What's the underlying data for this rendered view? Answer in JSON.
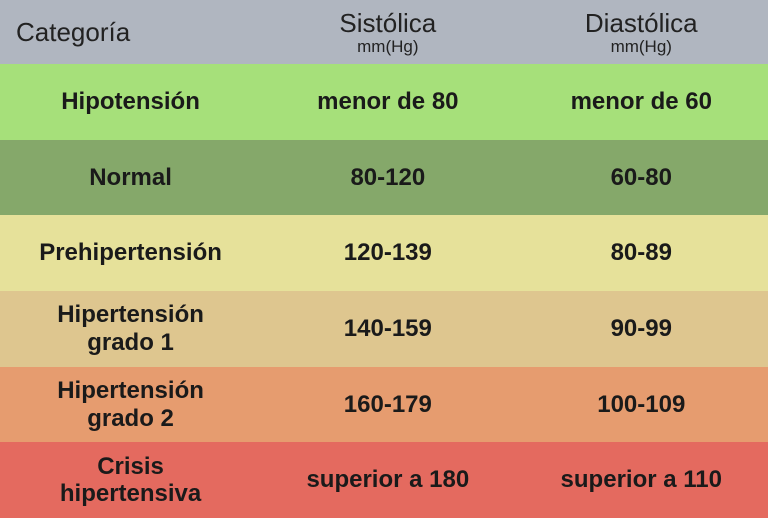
{
  "table": {
    "type": "table",
    "header": {
      "background_color": "#b0b6c0",
      "text_color": "#222222",
      "columns": [
        {
          "title": "Categoría",
          "unit": ""
        },
        {
          "title": "Sistólica",
          "unit": "mm(Hg)"
        },
        {
          "title": "Diastólica",
          "unit": "mm(Hg)"
        }
      ],
      "title_fontsize": 26,
      "unit_fontsize": 17
    },
    "rows": [
      {
        "category": [
          "Hipotensión"
        ],
        "systolic": "menor de 80",
        "diastolic": "menor de 60",
        "background_color": "#a6e07a"
      },
      {
        "category": [
          "Normal"
        ],
        "systolic": "80-120",
        "diastolic": "60-80",
        "background_color": "#85a86a"
      },
      {
        "category": [
          "Prehipertensión"
        ],
        "systolic": "120-139",
        "diastolic": "80-89",
        "background_color": "#e6e19a"
      },
      {
        "category": [
          "Hipertensión",
          "grado 1"
        ],
        "systolic": "140-159",
        "diastolic": "90-99",
        "background_color": "#dec68f"
      },
      {
        "category": [
          "Hipertensión",
          "grado 2"
        ],
        "systolic": "160-179",
        "diastolic": "100-109",
        "background_color": "#e69c6f"
      },
      {
        "category": [
          "Crisis",
          "hipertensiva"
        ],
        "systolic": "superior a 180",
        "diastolic": "superior a 110",
        "background_color": "#e46a5f"
      }
    ],
    "data_fontsize": 24,
    "data_fontweight": "bold",
    "data_text_color": "#1a1a1a",
    "column_widths_pct": [
      34,
      33,
      33
    ]
  }
}
